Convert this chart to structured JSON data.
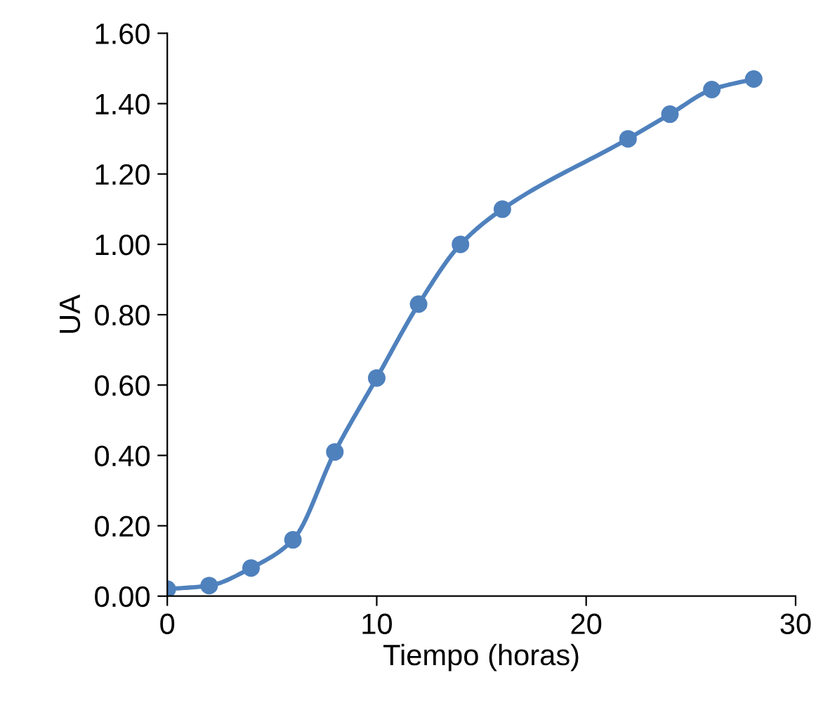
{
  "chart_data": {
    "type": "line",
    "xlabel": "Tiempo (horas)",
    "ylabel": "UA",
    "x": [
      0,
      2,
      4,
      6,
      8,
      10,
      12,
      14,
      16,
      22,
      24,
      26,
      28
    ],
    "series": [
      {
        "color": "#4f81bd",
        "values": [
          0.02,
          0.03,
          0.08,
          0.16,
          0.41,
          0.62,
          0.83,
          1.0,
          1.1,
          1.3,
          1.37,
          1.44,
          1.47
        ]
      }
    ],
    "xlim": [
      0,
      30
    ],
    "xticks": [
      0,
      10,
      20,
      30
    ],
    "ylim": [
      0,
      1.6
    ],
    "yticks": [
      {
        "value": 0,
        "label": "0.00"
      },
      {
        "value": 0.2,
        "label": "0.20"
      },
      {
        "value": 0.4,
        "label": "0.40"
      },
      {
        "value": 0.6,
        "label": "0.60"
      },
      {
        "value": 0.8,
        "label": "0.80"
      },
      {
        "value": 1.0,
        "label": "1.00"
      },
      {
        "value": 1.2,
        "label": "1.20"
      },
      {
        "value": 1.4,
        "label": "1.40"
      },
      {
        "value": 1.6,
        "label": "1.60"
      }
    ],
    "grid": false,
    "marker": "circle",
    "line_style": "solid"
  }
}
